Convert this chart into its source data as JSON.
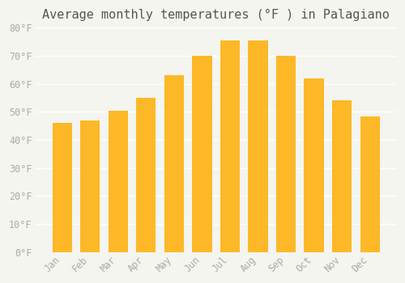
{
  "title": "Average monthly temperatures (°F ) in Palagiano",
  "months": [
    "Jan",
    "Feb",
    "Mar",
    "Apr",
    "May",
    "Jun",
    "Jul",
    "Aug",
    "Sep",
    "Oct",
    "Nov",
    "Dec"
  ],
  "values": [
    46,
    47,
    50.5,
    55,
    63,
    70,
    75.5,
    75.5,
    70,
    62,
    54,
    48.5
  ],
  "bar_color_main": "#FDB827",
  "bar_color_edge": "#F5A623",
  "ylim": [
    0,
    80
  ],
  "yticks": [
    0,
    10,
    20,
    30,
    40,
    50,
    60,
    70,
    80
  ],
  "ytick_labels": [
    "0°F",
    "10°F",
    "20°F",
    "30°F",
    "40°F",
    "50°F",
    "60°F",
    "70°F",
    "80°F"
  ],
  "background_color": "#f5f5f0",
  "grid_color": "#ffffff",
  "title_fontsize": 11,
  "tick_fontsize": 8.5,
  "font_color": "#aaaaaa"
}
